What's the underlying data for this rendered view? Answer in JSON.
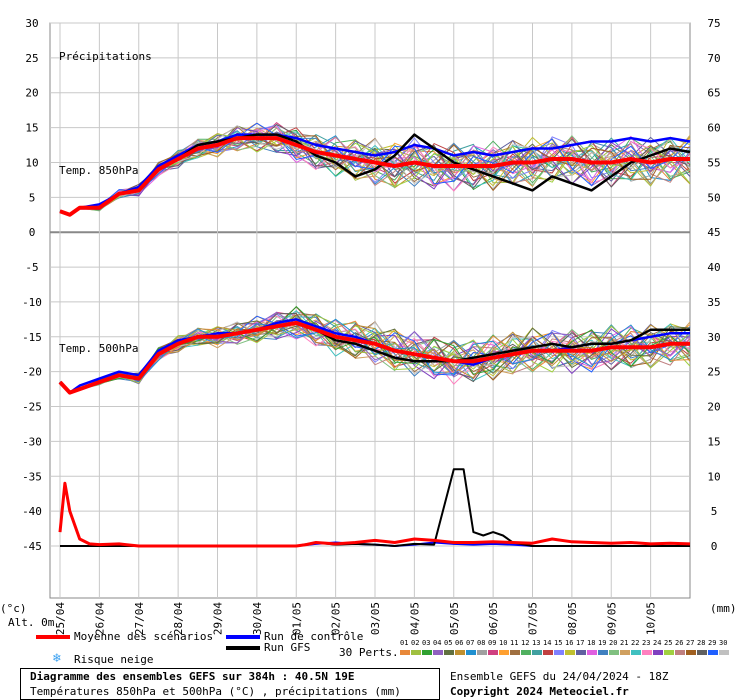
{
  "header": {
    "left_unit": "(°c)",
    "right_unit": "(mm)",
    "altitude": "Alt. 0m"
  },
  "chart_data": {
    "type": "line",
    "title": "Diagramme des ensembles GEFS sur 384h : 40.5N 19E",
    "subtitle": "Températures 850hPa et 500hPa (°C) , précipitations (mm)",
    "labels": {
      "precip": "Précipitations",
      "t850": "Temp. 850hPa",
      "t500": "Temp. 500hPa"
    },
    "y_left_ticks": [
      30,
      25,
      20,
      15,
      10,
      5,
      0,
      -5,
      -10,
      -15,
      -20,
      -25,
      -30,
      -35,
      -40,
      -45
    ],
    "y_right_ticks": [
      75,
      70,
      65,
      60,
      55,
      50,
      45,
      40,
      35,
      30,
      25,
      20,
      15,
      10,
      5,
      0
    ],
    "x_ticks": [
      "25/04",
      "26/04",
      "27/04",
      "28/04",
      "29/04",
      "30/04",
      "01/05",
      "02/05",
      "03/05",
      "04/05",
      "05/05",
      "06/05",
      "07/05",
      "08/05",
      "09/05",
      "10/05"
    ],
    "grid": true,
    "temp850_mean": [
      [
        0,
        3
      ],
      [
        6,
        2.5
      ],
      [
        12,
        3.5
      ],
      [
        24,
        3.5
      ],
      [
        36,
        5.5
      ],
      [
        48,
        6
      ],
      [
        60,
        9
      ],
      [
        72,
        10.5
      ],
      [
        84,
        12
      ],
      [
        96,
        12.5
      ],
      [
        108,
        13.5
      ],
      [
        120,
        13.5
      ],
      [
        132,
        13.5
      ],
      [
        144,
        12.5
      ],
      [
        156,
        11.5
      ],
      [
        168,
        11
      ],
      [
        180,
        10.5
      ],
      [
        192,
        10
      ],
      [
        204,
        9.5
      ],
      [
        216,
        10
      ],
      [
        228,
        9.5
      ],
      [
        240,
        9.5
      ],
      [
        252,
        9.5
      ],
      [
        264,
        9.5
      ],
      [
        276,
        10
      ],
      [
        288,
        10
      ],
      [
        300,
        10.5
      ],
      [
        312,
        10.5
      ],
      [
        324,
        10
      ],
      [
        336,
        10
      ],
      [
        348,
        10.5
      ],
      [
        360,
        10
      ],
      [
        372,
        10.5
      ],
      [
        384,
        10.5
      ]
    ],
    "temp850_control": [
      [
        0,
        3
      ],
      [
        6,
        2.5
      ],
      [
        12,
        3.5
      ],
      [
        24,
        4
      ],
      [
        36,
        5.5
      ],
      [
        48,
        6.5
      ],
      [
        60,
        9.5
      ],
      [
        72,
        11
      ],
      [
        84,
        12.5
      ],
      [
        96,
        13
      ],
      [
        108,
        14
      ],
      [
        120,
        14
      ],
      [
        132,
        14
      ],
      [
        144,
        13.5
      ],
      [
        156,
        12.5
      ],
      [
        168,
        12
      ],
      [
        180,
        11.5
      ],
      [
        192,
        11
      ],
      [
        204,
        11.5
      ],
      [
        216,
        12.5
      ],
      [
        228,
        12
      ],
      [
        240,
        11
      ],
      [
        252,
        11.5
      ],
      [
        264,
        11
      ],
      [
        276,
        11.5
      ],
      [
        288,
        12
      ],
      [
        300,
        12
      ],
      [
        312,
        12.5
      ],
      [
        324,
        13
      ],
      [
        336,
        13
      ],
      [
        348,
        13.5
      ],
      [
        360,
        13
      ],
      [
        372,
        13.5
      ],
      [
        384,
        13
      ]
    ],
    "temp850_gfs": [
      [
        0,
        3
      ],
      [
        6,
        2.5
      ],
      [
        12,
        3.5
      ],
      [
        24,
        3.5
      ],
      [
        36,
        5.5
      ],
      [
        48,
        6
      ],
      [
        60,
        9
      ],
      [
        72,
        10.5
      ],
      [
        84,
        12.5
      ],
      [
        96,
        13
      ],
      [
        108,
        13.5
      ],
      [
        120,
        14
      ],
      [
        132,
        14
      ],
      [
        144,
        13
      ],
      [
        156,
        11
      ],
      [
        168,
        10
      ],
      [
        180,
        8
      ],
      [
        192,
        9
      ],
      [
        204,
        11
      ],
      [
        216,
        14
      ],
      [
        228,
        12
      ],
      [
        240,
        10
      ],
      [
        252,
        9
      ],
      [
        264,
        8
      ],
      [
        276,
        7
      ],
      [
        288,
        6
      ],
      [
        300,
        8
      ],
      [
        312,
        7
      ],
      [
        324,
        6
      ],
      [
        336,
        8
      ],
      [
        348,
        10
      ],
      [
        360,
        11
      ],
      [
        372,
        12
      ],
      [
        384,
        11.5
      ]
    ],
    "temp500_mean": [
      [
        0,
        -21.5
      ],
      [
        6,
        -23
      ],
      [
        12,
        -22.5
      ],
      [
        24,
        -21.5
      ],
      [
        36,
        -20.5
      ],
      [
        48,
        -21
      ],
      [
        60,
        -17.5
      ],
      [
        72,
        -16
      ],
      [
        84,
        -15
      ],
      [
        96,
        -15
      ],
      [
        108,
        -14.5
      ],
      [
        120,
        -14
      ],
      [
        132,
        -13.5
      ],
      [
        144,
        -13
      ],
      [
        156,
        -14
      ],
      [
        168,
        -15
      ],
      [
        180,
        -15.5
      ],
      [
        192,
        -16
      ],
      [
        204,
        -17
      ],
      [
        216,
        -17.5
      ],
      [
        228,
        -18
      ],
      [
        240,
        -18.5
      ],
      [
        252,
        -18.5
      ],
      [
        264,
        -18
      ],
      [
        276,
        -17.5
      ],
      [
        288,
        -17
      ],
      [
        300,
        -17
      ],
      [
        312,
        -17
      ],
      [
        324,
        -17
      ],
      [
        336,
        -16.5
      ],
      [
        348,
        -16.5
      ],
      [
        360,
        -16.5
      ],
      [
        372,
        -16
      ],
      [
        384,
        -16
      ]
    ],
    "temp500_control": [
      [
        0,
        -21.5
      ],
      [
        6,
        -23
      ],
      [
        12,
        -22
      ],
      [
        24,
        -21
      ],
      [
        36,
        -20
      ],
      [
        48,
        -20.5
      ],
      [
        60,
        -17
      ],
      [
        72,
        -15.5
      ],
      [
        84,
        -15
      ],
      [
        96,
        -14.5
      ],
      [
        108,
        -14.5
      ],
      [
        120,
        -14
      ],
      [
        132,
        -13
      ],
      [
        144,
        -12.5
      ],
      [
        156,
        -13.5
      ],
      [
        168,
        -14.5
      ],
      [
        180,
        -15
      ],
      [
        192,
        -16
      ],
      [
        204,
        -17
      ],
      [
        216,
        -17.5
      ],
      [
        228,
        -18
      ],
      [
        240,
        -18.5
      ],
      [
        252,
        -19
      ],
      [
        264,
        -18
      ],
      [
        276,
        -17.5
      ],
      [
        288,
        -17
      ],
      [
        300,
        -17
      ],
      [
        312,
        -16.5
      ],
      [
        324,
        -16
      ],
      [
        336,
        -16
      ],
      [
        348,
        -15.5
      ],
      [
        360,
        -15
      ],
      [
        372,
        -14.5
      ],
      [
        384,
        -14.5
      ]
    ],
    "temp500_gfs": [
      [
        0,
        -21.5
      ],
      [
        6,
        -23
      ],
      [
        12,
        -22.5
      ],
      [
        24,
        -21.5
      ],
      [
        36,
        -20.5
      ],
      [
        48,
        -21
      ],
      [
        60,
        -17.5
      ],
      [
        72,
        -16
      ],
      [
        84,
        -15
      ],
      [
        96,
        -15
      ],
      [
        108,
        -14.5
      ],
      [
        120,
        -14
      ],
      [
        132,
        -13.5
      ],
      [
        144,
        -13
      ],
      [
        156,
        -14
      ],
      [
        168,
        -15.5
      ],
      [
        180,
        -16
      ],
      [
        192,
        -17
      ],
      [
        204,
        -18
      ],
      [
        216,
        -18.5
      ],
      [
        228,
        -18.5
      ],
      [
        240,
        -18.5
      ],
      [
        252,
        -18
      ],
      [
        264,
        -17.5
      ],
      [
        276,
        -17
      ],
      [
        288,
        -16.5
      ],
      [
        300,
        -16
      ],
      [
        312,
        -16.5
      ],
      [
        324,
        -16
      ],
      [
        336,
        -16
      ],
      [
        348,
        -15.5
      ],
      [
        360,
        -14
      ],
      [
        372,
        -14
      ],
      [
        384,
        -14
      ]
    ],
    "precip_mean_mm": [
      [
        0,
        2
      ],
      [
        3,
        9
      ],
      [
        6,
        5
      ],
      [
        12,
        1
      ],
      [
        18,
        0.3
      ],
      [
        24,
        0.2
      ],
      [
        36,
        0.3
      ],
      [
        48,
        0
      ],
      [
        60,
        0
      ],
      [
        72,
        0
      ],
      [
        84,
        0
      ],
      [
        96,
        0
      ],
      [
        108,
        0
      ],
      [
        120,
        0
      ],
      [
        132,
        0
      ],
      [
        144,
        0
      ],
      [
        150,
        0.2
      ],
      [
        156,
        0.5
      ],
      [
        168,
        0.3
      ],
      [
        180,
        0.5
      ],
      [
        192,
        0.8
      ],
      [
        204,
        0.5
      ],
      [
        216,
        1
      ],
      [
        228,
        0.8
      ],
      [
        240,
        0.5
      ],
      [
        252,
        0.5
      ],
      [
        264,
        0.6
      ],
      [
        276,
        0.5
      ],
      [
        288,
        0.4
      ],
      [
        300,
        1
      ],
      [
        312,
        0.6
      ],
      [
        324,
        0.5
      ],
      [
        336,
        0.4
      ],
      [
        348,
        0.5
      ],
      [
        360,
        0.3
      ],
      [
        372,
        0.4
      ],
      [
        384,
        0.3
      ]
    ],
    "precip_gfs_mm": [
      [
        0,
        0
      ],
      [
        6,
        0
      ],
      [
        12,
        0
      ],
      [
        144,
        0
      ],
      [
        156,
        0.5
      ],
      [
        168,
        0.2
      ],
      [
        180,
        0.3
      ],
      [
        192,
        0.2
      ],
      [
        204,
        0
      ],
      [
        216,
        0.3
      ],
      [
        228,
        0.2
      ],
      [
        240,
        11
      ],
      [
        246,
        11
      ],
      [
        252,
        2
      ],
      [
        258,
        1.5
      ],
      [
        264,
        2
      ],
      [
        270,
        1.5
      ],
      [
        276,
        0.5
      ],
      [
        288,
        0
      ],
      [
        300,
        0
      ],
      [
        384,
        0
      ]
    ],
    "precip_control_mm": [
      [
        0,
        0
      ],
      [
        144,
        0
      ],
      [
        156,
        0.3
      ],
      [
        168,
        0.5
      ],
      [
        180,
        0.3
      ],
      [
        192,
        0.2
      ],
      [
        204,
        0
      ],
      [
        216,
        0.2
      ],
      [
        228,
        0.5
      ],
      [
        240,
        0.3
      ],
      [
        252,
        0.2
      ],
      [
        264,
        0.3
      ],
      [
        276,
        0.2
      ],
      [
        288,
        0
      ],
      [
        384,
        0
      ]
    ]
  },
  "legend": {
    "mean": "Moyenne des scénarios",
    "control": "Run de contrôle",
    "gfs": "Run GFS",
    "snow": "Risque neige",
    "perts_label": "30 Perts.",
    "perts": [
      "01",
      "02",
      "03",
      "04",
      "05",
      "06",
      "07",
      "08",
      "09",
      "10",
      "11",
      "12",
      "13",
      "14",
      "15",
      "16",
      "17",
      "18",
      "19",
      "20",
      "21",
      "22",
      "23",
      "24",
      "25",
      "26",
      "27",
      "28",
      "29",
      "30"
    ],
    "colors": {
      "mean": "#ff0000",
      "control": "#0000ff",
      "gfs": "#000000",
      "snow": "#3aa0f0"
    },
    "pert_colors": [
      "#e8883a",
      "#a0c040",
      "#30a030",
      "#9060c0",
      "#607040",
      "#c09030",
      "#2090d0",
      "#a0a0a0",
      "#d04080",
      "#ffa030",
      "#a07040",
      "#50b060",
      "#40a0a0",
      "#c04040",
      "#8080ff",
      "#c0c030",
      "#6060a0",
      "#e060e0",
      "#4080c0",
      "#80c080",
      "#d0a060",
      "#40c0c0",
      "#ff80c0",
      "#8040c0",
      "#a0d040",
      "#c08080",
      "#a06020",
      "#606060",
      "#2060ff",
      "#c0c0c0"
    ]
  },
  "footer": {
    "title": "Diagramme des ensembles GEFS sur 384h : 40.5N 19E",
    "subtitle": "Températures 850hPa et 500hPa (°C) , précipitations (mm)",
    "run": "Ensemble GEFS du 24/04/2024 - 18Z",
    "copyright": "Copyright 2024 Meteociel.fr"
  }
}
